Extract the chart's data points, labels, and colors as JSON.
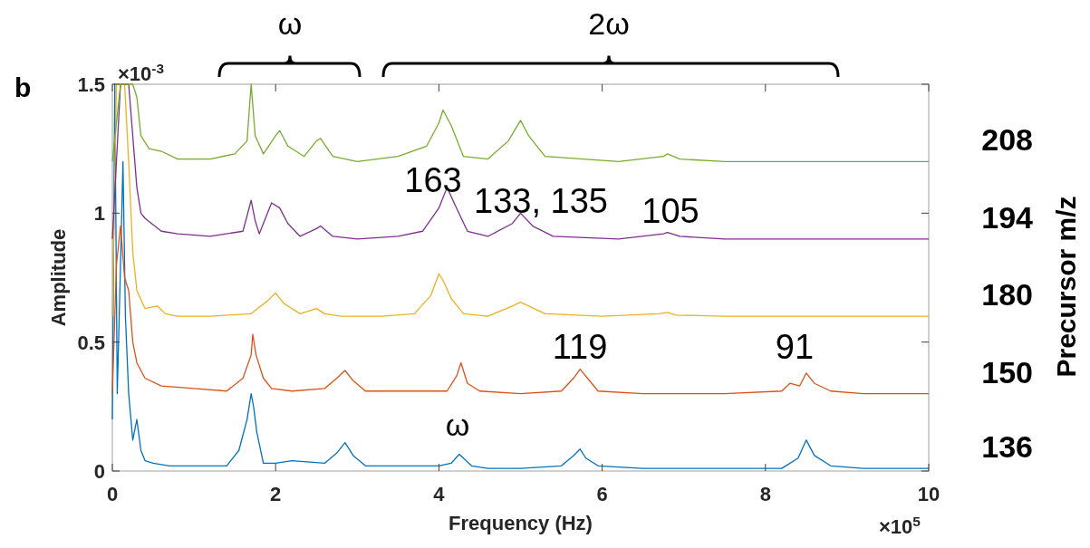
{
  "chart_data": {
    "type": "line",
    "xlabel": "Frequency (Hz)",
    "ylabel": "Amplitude",
    "y2label": "Precursor m/z",
    "xlim": [
      0,
      10
    ],
    "ylim": [
      0,
      1.5
    ],
    "xticks": [
      0,
      2,
      4,
      6,
      8,
      10
    ],
    "yticks": [
      0,
      0.5,
      1,
      1.5
    ],
    "grid": false,
    "marker": "none",
    "line_style": "solid",
    "annotations": [
      "b",
      "×10$^{-3}$",
      "×10$^{5}$",
      "ω",
      "2ω",
      "163",
      "133, 135",
      "105",
      "119",
      "91",
      "ω"
    ],
    "series": [
      {
        "name": "136",
        "color": "#0072bd",
        "x": [
          0,
          0.03,
          0.06,
          0.1,
          0.13,
          0.16,
          0.2,
          0.25,
          0.3,
          0.35,
          0.4,
          0.5,
          0.7,
          1.0,
          1.4,
          1.55,
          1.65,
          1.7,
          1.73,
          1.77,
          1.85,
          2.0,
          2.2,
          2.6,
          2.75,
          2.85,
          2.95,
          3.1,
          3.5,
          4.0,
          4.15,
          4.25,
          4.3,
          4.4,
          4.6,
          5.0,
          5.5,
          5.65,
          5.73,
          5.8,
          5.95,
          6.5,
          7.5,
          8.2,
          8.4,
          8.5,
          8.6,
          8.8,
          9.2,
          10
        ],
        "values": [
          0.2,
          1.5,
          0.3,
          0.8,
          1.2,
          0.6,
          0.3,
          0.12,
          0.2,
          0.08,
          0.04,
          0.03,
          0.02,
          0.02,
          0.02,
          0.08,
          0.2,
          0.3,
          0.25,
          0.15,
          0.03,
          0.03,
          0.04,
          0.03,
          0.07,
          0.11,
          0.06,
          0.02,
          0.02,
          0.02,
          0.03,
          0.065,
          0.05,
          0.02,
          0.01,
          0.01,
          0.02,
          0.06,
          0.085,
          0.05,
          0.02,
          0.01,
          0.01,
          0.01,
          0.05,
          0.12,
          0.06,
          0.02,
          0.01,
          0.01
        ]
      },
      {
        "name": "150",
        "color": "#d95319",
        "x": [
          0,
          0.05,
          0.1,
          0.15,
          0.2,
          0.25,
          0.3,
          0.4,
          0.6,
          1.0,
          1.4,
          1.6,
          1.7,
          1.72,
          1.76,
          1.85,
          1.95,
          2.2,
          2.6,
          2.75,
          2.85,
          2.95,
          3.1,
          3.6,
          4.1,
          4.22,
          4.27,
          4.35,
          4.5,
          5.0,
          5.5,
          5.65,
          5.73,
          5.82,
          5.95,
          6.5,
          7.5,
          8.2,
          8.3,
          8.42,
          8.5,
          8.6,
          8.8,
          9.2,
          10
        ],
        "values": [
          0.3,
          0.8,
          0.95,
          0.75,
          0.7,
          0.5,
          0.42,
          0.36,
          0.33,
          0.32,
          0.31,
          0.36,
          0.45,
          0.53,
          0.45,
          0.36,
          0.32,
          0.31,
          0.32,
          0.36,
          0.39,
          0.35,
          0.31,
          0.31,
          0.31,
          0.37,
          0.42,
          0.34,
          0.31,
          0.3,
          0.31,
          0.36,
          0.395,
          0.36,
          0.31,
          0.3,
          0.3,
          0.31,
          0.34,
          0.33,
          0.38,
          0.34,
          0.31,
          0.3,
          0.3
        ]
      },
      {
        "name": "180",
        "color": "#edb120",
        "x": [
          0,
          0.05,
          0.1,
          0.15,
          0.2,
          0.25,
          0.3,
          0.4,
          0.55,
          0.65,
          0.8,
          1.2,
          1.7,
          1.9,
          2.0,
          2.1,
          2.3,
          2.5,
          2.6,
          2.8,
          3.3,
          3.7,
          3.9,
          4.0,
          4.05,
          4.15,
          4.3,
          4.6,
          4.9,
          5.0,
          5.1,
          5.3,
          6.0,
          6.7,
          6.8,
          6.9,
          7.5,
          8.5,
          10
        ],
        "values": [
          0.6,
          1.5,
          1.5,
          1.5,
          1.2,
          0.85,
          0.7,
          0.63,
          0.64,
          0.61,
          0.6,
          0.6,
          0.61,
          0.66,
          0.69,
          0.65,
          0.61,
          0.63,
          0.61,
          0.6,
          0.6,
          0.61,
          0.68,
          0.765,
          0.74,
          0.67,
          0.61,
          0.6,
          0.64,
          0.655,
          0.64,
          0.61,
          0.6,
          0.61,
          0.615,
          0.605,
          0.6,
          0.6,
          0.6
        ]
      },
      {
        "name": "194",
        "color": "#7e2f8e",
        "x": [
          0,
          0.1,
          0.15,
          0.2,
          0.25,
          0.3,
          0.35,
          0.4,
          0.6,
          0.8,
          1.2,
          1.6,
          1.7,
          1.75,
          1.8,
          1.95,
          2.05,
          2.15,
          2.3,
          2.5,
          2.55,
          2.7,
          3.0,
          3.5,
          3.8,
          4.0,
          4.1,
          4.2,
          4.35,
          4.6,
          4.9,
          5.0,
          5.15,
          5.4,
          6.2,
          6.75,
          6.8,
          6.95,
          7.5,
          8.5,
          10
        ],
        "values": [
          0.9,
          1.5,
          1.5,
          1.5,
          1.3,
          1.1,
          1.0,
          0.98,
          0.93,
          0.92,
          0.91,
          0.93,
          1.05,
          0.97,
          0.92,
          1.04,
          1.02,
          0.96,
          0.91,
          0.94,
          0.95,
          0.91,
          0.9,
          0.91,
          0.93,
          1.02,
          1.1,
          1.03,
          0.93,
          0.91,
          0.96,
          1.0,
          0.95,
          0.91,
          0.9,
          0.92,
          0.925,
          0.91,
          0.9,
          0.9,
          0.9
        ]
      },
      {
        "name": "208",
        "color": "#77ac30",
        "x": [
          0,
          0.1,
          0.2,
          0.25,
          0.3,
          0.35,
          0.45,
          0.6,
          0.8,
          1.2,
          1.5,
          1.65,
          1.7,
          1.75,
          1.85,
          2.0,
          2.05,
          2.15,
          2.35,
          2.5,
          2.55,
          2.7,
          3.0,
          3.5,
          3.85,
          4.0,
          4.05,
          4.15,
          4.3,
          4.6,
          4.85,
          5.0,
          5.1,
          5.3,
          6.2,
          6.75,
          6.8,
          6.95,
          7.5,
          8.5,
          10
        ],
        "values": [
          1.2,
          1.5,
          1.5,
          1.5,
          1.45,
          1.3,
          1.25,
          1.24,
          1.21,
          1.21,
          1.23,
          1.28,
          1.5,
          1.3,
          1.23,
          1.3,
          1.32,
          1.26,
          1.22,
          1.28,
          1.29,
          1.22,
          1.2,
          1.22,
          1.26,
          1.35,
          1.4,
          1.34,
          1.22,
          1.21,
          1.28,
          1.36,
          1.3,
          1.22,
          1.2,
          1.22,
          1.23,
          1.21,
          1.2,
          1.2,
          1.2
        ]
      }
    ]
  }
}
